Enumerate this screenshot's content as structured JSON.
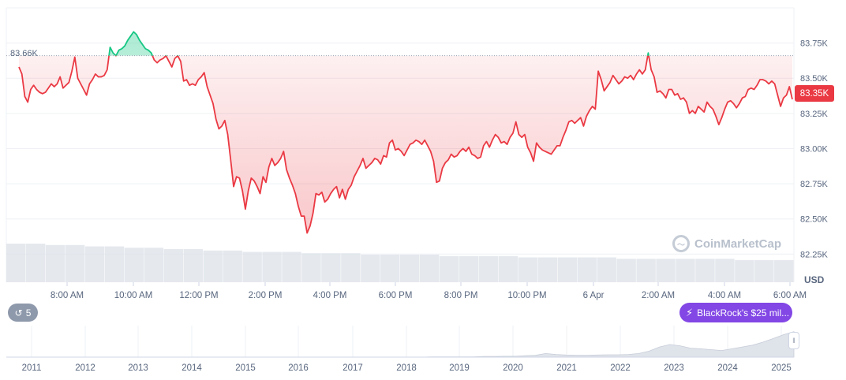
{
  "chart_data": {
    "type": "line",
    "x_label_ticks": [
      "8:00 AM",
      "10:00 AM",
      "12:00 PM",
      "2:00 PM",
      "4:00 PM",
      "6:00 PM",
      "8:00 PM",
      "10:00 PM",
      "6 Apr",
      "2:00 AM",
      "4:00 AM",
      "6:00 AM"
    ],
    "y_ticks": [
      "82.25K",
      "82.50K",
      "82.75K",
      "83.00K",
      "83.25K",
      "83.50K",
      "83.75K"
    ],
    "y_tick_values": [
      82250,
      82500,
      82750,
      83000,
      83250,
      83500,
      83750
    ],
    "ylim": [
      82050,
      84000
    ],
    "reference_value": 83660,
    "reference_label": "83.66K",
    "current_label": "83.35K",
    "currency": "USD",
    "series": [
      {
        "values": [
          83580,
          83530,
          83370,
          83330,
          83420,
          83450,
          83420,
          83400,
          83390,
          83400,
          83430,
          83460,
          83440,
          83460,
          83510,
          83430,
          83450,
          83470,
          83550,
          83650,
          83500,
          83460,
          83420,
          83380,
          83460,
          83490,
          83530,
          83510,
          83510,
          83520,
          83560,
          83720,
          83680,
          83660,
          83700,
          83710,
          83730,
          83770,
          83800,
          83830,
          83810,
          83770,
          83740,
          83710,
          83700,
          83680,
          83630,
          83610,
          83630,
          83640,
          83660,
          83620,
          83580,
          83640,
          83660,
          83620,
          83480,
          83490,
          83450,
          83460,
          83450,
          83490,
          83510,
          83540,
          83440,
          83380,
          83320,
          83210,
          83140,
          83160,
          83200,
          83100,
          82920,
          82730,
          82800,
          82790,
          82700,
          82570,
          82700,
          82790,
          82770,
          82730,
          82680,
          82800,
          82760,
          82870,
          82930,
          82880,
          82900,
          82930,
          82980,
          82850,
          82790,
          82740,
          82680,
          82590,
          82520,
          82520,
          82400,
          82450,
          82540,
          82680,
          82670,
          82690,
          82620,
          82640,
          82680,
          82710,
          82730,
          82650,
          82710,
          82640,
          82710,
          82740,
          82800,
          82840,
          82880,
          82930,
          82860,
          82880,
          82900,
          82930,
          82920,
          82890,
          82950,
          82940,
          83040,
          83060,
          82990,
          83000,
          82980,
          82950,
          82990,
          83030,
          83040,
          83060,
          83050,
          83030,
          83060,
          83020,
          82980,
          82910,
          82760,
          82770,
          82860,
          82900,
          82920,
          82960,
          82940,
          82950,
          82980,
          83000,
          82980,
          83010,
          82960,
          82950,
          82930,
          82940,
          83020,
          83050,
          83010,
          83060,
          83100,
          83080,
          83040,
          83050,
          83030,
          83080,
          83110,
          83190,
          83100,
          83080,
          83100,
          83010,
          82970,
          82910,
          83040,
          83010,
          82990,
          82980,
          82970,
          82960,
          82990,
          83020,
          83020,
          83080,
          83130,
          83190,
          83200,
          83180,
          83200,
          83220,
          83160,
          83230,
          83270,
          83300,
          83280,
          83550,
          83490,
          83410,
          83440,
          83470,
          83520,
          83490,
          83460,
          83480,
          83510,
          83500,
          83520,
          83490,
          83530,
          83560,
          83530,
          83560,
          83680,
          83560,
          83510,
          83400,
          83410,
          83390,
          83360,
          83420,
          83420,
          83380,
          83390,
          83350,
          83360,
          83330,
          83250,
          83270,
          83250,
          83300,
          83280,
          83260,
          83330,
          83300,
          83280,
          83230,
          83170,
          83220,
          83280,
          83330,
          83340,
          83320,
          83290,
          83320,
          83360,
          83370,
          83420,
          83430,
          83420,
          83450,
          83490,
          83490,
          83480,
          83460,
          83480,
          83460,
          83380,
          83300,
          83360,
          83380,
          83440,
          83350
        ]
      }
    ],
    "volume_relative": [
      0.28,
      0.28,
      0.27,
      0.27,
      0.26,
      0.26,
      0.25,
      0.25,
      0.24,
      0.24,
      0.23,
      0.23,
      0.22,
      0.22,
      0.22,
      0.21,
      0.21,
      0.21,
      0.2,
      0.2,
      0.2,
      0.2,
      0.19,
      0.19,
      0.19,
      0.19,
      0.18,
      0.18,
      0.18,
      0.18,
      0.18,
      0.17,
      0.17,
      0.17,
      0.17,
      0.17,
      0.17,
      0.16,
      0.16,
      0.16
    ],
    "nav_years": [
      "2011",
      "2012",
      "2013",
      "2014",
      "2015",
      "2016",
      "2017",
      "2018",
      "2019",
      "2020",
      "2021",
      "2022",
      "2023",
      "2024",
      "2025"
    ],
    "nav_history_relative": [
      0.0,
      0.0,
      0.0,
      0.01,
      0.01,
      0.01,
      0.01,
      0.01,
      0.02,
      0.02,
      0.03,
      0.03,
      0.05,
      0.06,
      0.12,
      0.09,
      0.07,
      0.06,
      0.06,
      0.07,
      0.08,
      0.08,
      0.09,
      0.12,
      0.2,
      0.34,
      0.42,
      0.38,
      0.3,
      0.28,
      0.25,
      0.22,
      0.28,
      0.34,
      0.4,
      0.5,
      0.62,
      0.75,
      0.85
    ]
  },
  "watermark": "CoinMarketCap",
  "event_badge": {
    "label": "BlackRock's $25 mil...",
    "icon": "lightning-icon"
  },
  "event_counter": {
    "count": "5",
    "icon": "history-icon"
  },
  "colors": {
    "down": "#ea3943",
    "up": "#16c784",
    "event": "#8247e5"
  }
}
